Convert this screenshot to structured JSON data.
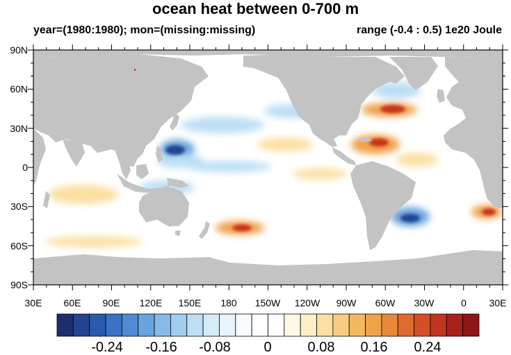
{
  "title": "ocean heat between 0-700 m",
  "subtitle_left": "year=(1980:1980); mon=(missing:missing)",
  "subtitle_right": "range (-0.4 : 0.5) 1e20 Joule",
  "lat_ticks": [
    "90N",
    "60N",
    "30N",
    "0",
    "30S",
    "60S",
    "90S"
  ],
  "lon_ticks": [
    "30E",
    "60E",
    "90E",
    "120E",
    "150E",
    "180",
    "150W",
    "120W",
    "90W",
    "60W",
    "30W",
    "0",
    "30E"
  ],
  "colorbar": {
    "labels": [
      "-0.24",
      "-0.16",
      "-0.08",
      "0",
      "0.08",
      "0.16",
      "0.24"
    ],
    "colors": [
      "#1d2e6e",
      "#23448f",
      "#2a5aad",
      "#3a72c4",
      "#4f8bd3",
      "#6aa4de",
      "#86bae8",
      "#a1cdef",
      "#bcdff5",
      "#d4ebf8",
      "#e8f4fb",
      "#f7fbfe",
      "#ffffff",
      "#ffffff",
      "#fff8e3",
      "#fdefc7",
      "#fbe0a3",
      "#f8cd7f",
      "#f4b862",
      "#f0a24a",
      "#ea883a",
      "#e06b2e",
      "#d44f27",
      "#c23521",
      "#a8221c",
      "#8f1618"
    ]
  },
  "colors": {
    "land": "#c3c3c3",
    "warm_strong": "#c8331f",
    "warm_mid": "#f0a24a",
    "warm_light": "#fbe0a3",
    "cool_strong": "#23448f",
    "cool_mid": "#6aa4de",
    "cool_light": "#bcdff5"
  }
}
